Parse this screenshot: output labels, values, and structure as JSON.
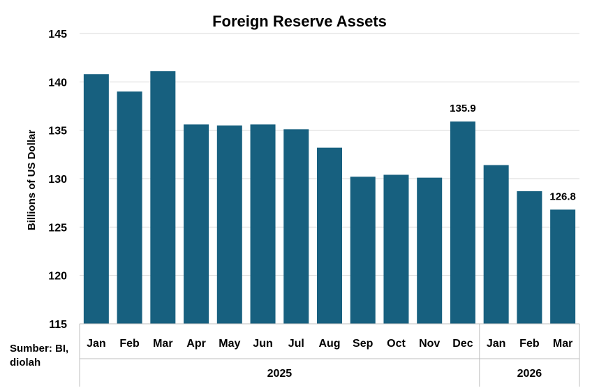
{
  "chart_data": {
    "type": "bar",
    "title": "Foreign Reserve Assets",
    "ylabel": "Billions of US Dollar",
    "xlabel": "",
    "ylim": [
      115,
      145
    ],
    "yticks": [
      115,
      120,
      125,
      130,
      135,
      140,
      145
    ],
    "grid": true,
    "legend": "none",
    "bar_color": "#17607F",
    "categories": [
      "Jan",
      "Feb",
      "Mar",
      "Apr",
      "May",
      "Jun",
      "Jul",
      "Aug",
      "Sep",
      "Oct",
      "Nov",
      "Dec",
      "Jan",
      "Feb",
      "Mar"
    ],
    "groups": [
      {
        "label": "2025",
        "count": 12
      },
      {
        "label": "2026",
        "count": 3
      }
    ],
    "values": [
      140.8,
      139.0,
      141.1,
      135.6,
      135.5,
      135.6,
      135.1,
      133.2,
      130.2,
      130.4,
      130.1,
      135.9,
      131.4,
      128.7,
      126.8
    ],
    "data_labels": {
      "11": "135.9",
      "14": "126.8"
    }
  },
  "source_note": "Sumber: BI, diolah"
}
